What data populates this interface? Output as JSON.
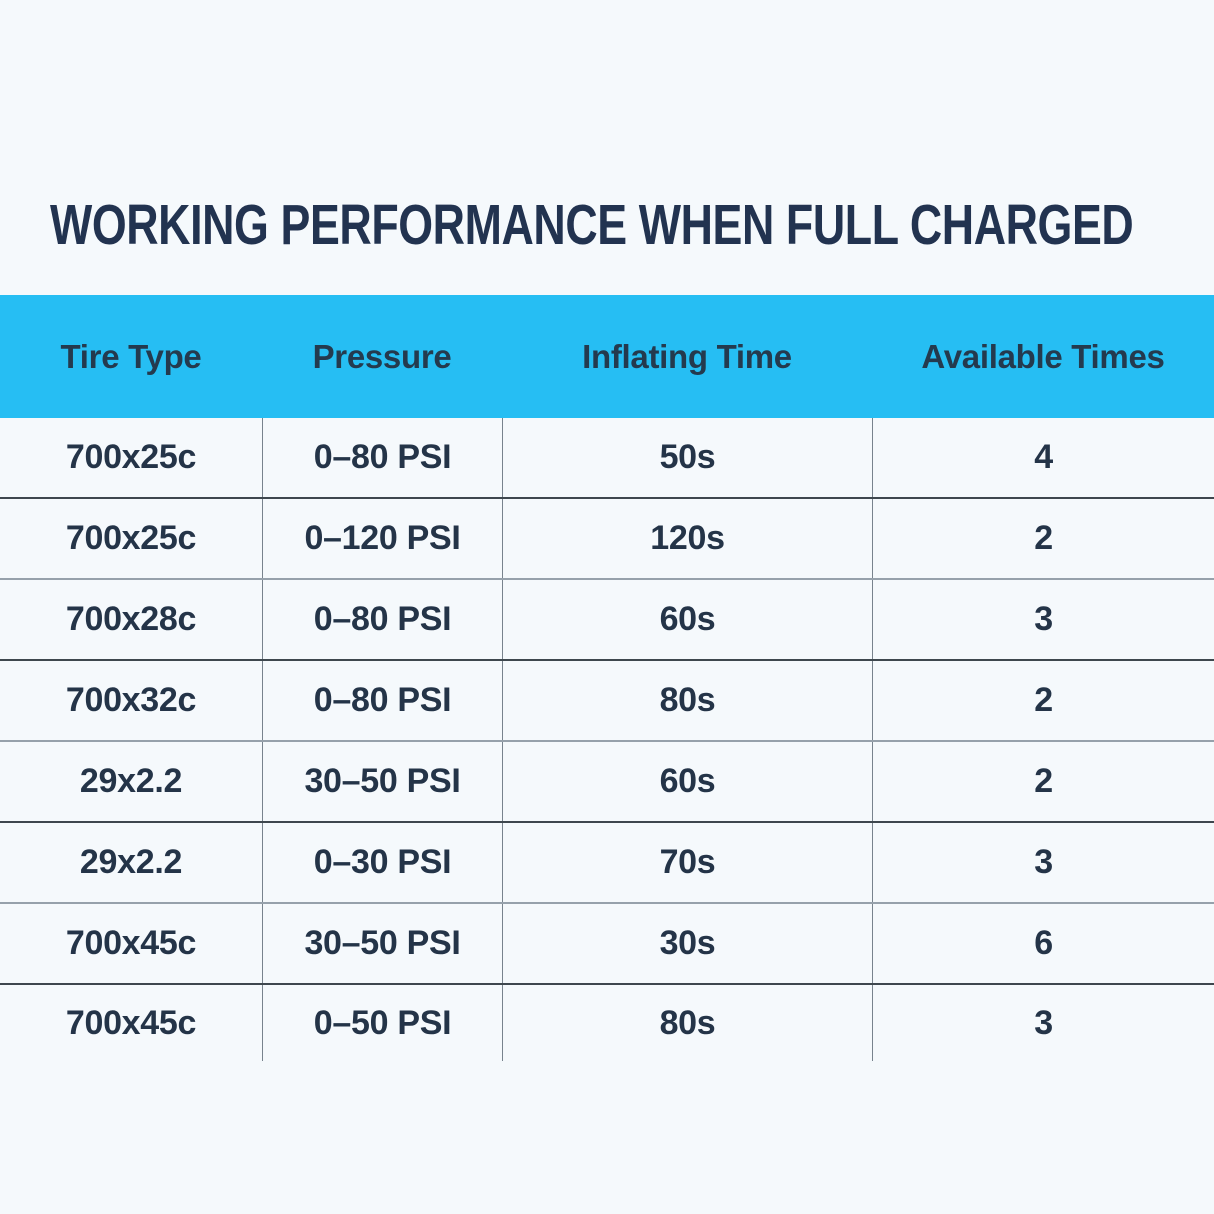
{
  "title": "WORKING PERFORMANCE WHEN FULL CHARGED",
  "chart_data": {
    "type": "table",
    "title": "WORKING PERFORMANCE WHEN FULL CHARGED",
    "columns": [
      "Tire Type",
      "Pressure",
      "Inflating Time",
      "Available Times"
    ],
    "rows": [
      [
        "700x25c",
        "0–80 PSI",
        "50s",
        "4"
      ],
      [
        "700x25c",
        "0–120 PSI",
        "120s",
        "2"
      ],
      [
        "700x28c",
        "0–80 PSI",
        "60s",
        "3"
      ],
      [
        "700x32c",
        "0–80 PSI",
        "80s",
        "2"
      ],
      [
        "29x2.2",
        "30–50 PSI",
        "60s",
        "2"
      ],
      [
        "29x2.2",
        "0–30 PSI",
        "70s",
        "3"
      ],
      [
        "700x45c",
        "30–50 PSI",
        "30s",
        "6"
      ],
      [
        "700x45c",
        "0–50 PSI",
        "80s",
        "3"
      ]
    ]
  },
  "colors": {
    "background": "#f5f9fc",
    "header_bg": "#26bef3",
    "title_text": "#223350",
    "header_text": "#243a4e",
    "cell_text": "#243448",
    "separator_dark": "#3e474e",
    "separator_light": "#96a1ab",
    "column_divider": "#78838d"
  }
}
